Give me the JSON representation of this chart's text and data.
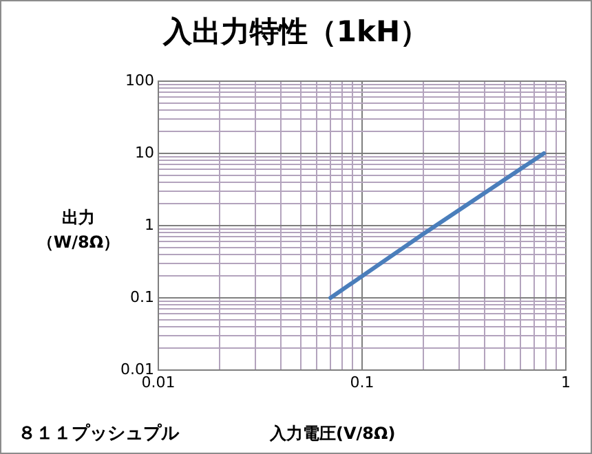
{
  "chart_data": {
    "type": "line",
    "title": "入出力特性（1kH）",
    "xlabel": "入力電圧(V/8Ω)",
    "ylabel": "出力（W/8Ω）",
    "annotations": [
      "８１１プッシュプル"
    ],
    "series": [
      {
        "color": "#4a7ebb",
        "x": [
          0.07,
          0.2,
          0.78
        ],
        "values": [
          0.1,
          0.77,
          10
        ]
      }
    ],
    "log": "xy",
    "xlim": [
      0.01,
      1
    ],
    "ylim": [
      0.01,
      100
    ],
    "xticks": [
      0.01,
      {
        "value": 0.02,
        "label": null
      },
      {
        "value": 0.03,
        "label": null
      },
      {
        "value": 0.04,
        "label": null
      },
      {
        "value": 0.05,
        "label": null
      },
      {
        "value": 0.06,
        "label": null
      },
      {
        "value": 0.07,
        "label": null
      },
      {
        "value": 0.08,
        "label": null
      },
      {
        "value": 0.09,
        "label": null
      },
      0.1,
      {
        "value": 0.2,
        "label": null
      },
      {
        "value": 0.3,
        "label": null
      },
      {
        "value": 0.4,
        "label": null
      },
      {
        "value": 0.5,
        "label": null
      },
      {
        "value": 0.6,
        "label": null
      },
      {
        "value": 0.7,
        "label": null
      },
      {
        "value": 0.8,
        "label": null
      },
      {
        "value": 0.9,
        "label": null
      },
      1
    ],
    "yticks": [
      0.01,
      {
        "value": 0.02,
        "label": null
      },
      {
        "value": 0.03,
        "label": null
      },
      {
        "value": 0.04,
        "label": null
      },
      {
        "value": 0.05,
        "label": null
      },
      {
        "value": 0.06,
        "label": null
      },
      {
        "value": 0.07,
        "label": null
      },
      {
        "value": 0.08,
        "label": null
      },
      {
        "value": 0.09,
        "label": null
      },
      0.1,
      {
        "value": 0.2,
        "label": null
      },
      {
        "value": 0.3,
        "label": null
      },
      {
        "value": 0.4,
        "label": null
      },
      {
        "value": 0.5,
        "label": null
      },
      {
        "value": 0.6,
        "label": null
      },
      {
        "value": 0.7,
        "label": null
      },
      {
        "value": 0.8,
        "label": null
      },
      {
        "value": 0.9,
        "label": null
      },
      1,
      {
        "value": 2,
        "label": null
      },
      {
        "value": 3,
        "label": null
      },
      {
        "value": 4,
        "label": null
      },
      {
        "value": 5,
        "label": null
      },
      {
        "value": 6,
        "label": null
      },
      {
        "value": 7,
        "label": null
      },
      {
        "value": 8,
        "label": null
      },
      {
        "value": 9,
        "label": null
      },
      10,
      {
        "value": 20,
        "label": null
      },
      {
        "value": 30,
        "label": null
      },
      {
        "value": 40,
        "label": null
      },
      {
        "value": 50,
        "label": null
      },
      {
        "value": 60,
        "label": null
      },
      {
        "value": 70,
        "label": null
      },
      {
        "value": 80,
        "label": null
      },
      {
        "value": 90,
        "label": null
      },
      100
    ],
    "grid": true,
    "marker": "none",
    "line_style": "solid"
  }
}
